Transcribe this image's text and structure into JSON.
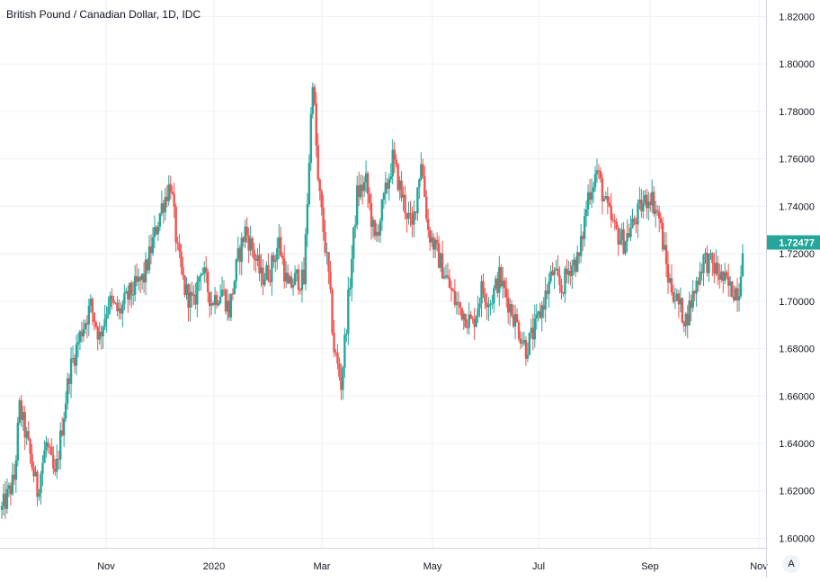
{
  "chart_data": {
    "type": "candlestick",
    "title": "British Pound / Canadian Dollar, 1D, IDC",
    "y_ticks": [
      "1.82000",
      "1.80000",
      "1.78000",
      "1.76000",
      "1.74000",
      "1.72000",
      "1.70000",
      "1.68000",
      "1.66000",
      "1.64000",
      "1.62000",
      "1.60000"
    ],
    "ylim": [
      1.596,
      1.827
    ],
    "x_ticks": [
      "Nov",
      "2020",
      "Mar",
      "May",
      "Jul",
      "Sep",
      "Nov"
    ],
    "last_price": "1.72477",
    "grid": true,
    "colors": {
      "up": "#26a69a",
      "down": "#ef5350",
      "last_price_bg": "#26a69a"
    },
    "waypoints": [
      [
        0,
        1.612
      ],
      [
        7,
        1.625
      ],
      [
        10,
        1.655
      ],
      [
        14,
        1.642
      ],
      [
        20,
        1.62
      ],
      [
        25,
        1.64
      ],
      [
        30,
        1.625
      ],
      [
        38,
        1.67
      ],
      [
        45,
        1.688
      ],
      [
        50,
        1.698
      ],
      [
        55,
        1.685
      ],
      [
        60,
        1.7
      ],
      [
        66,
        1.695
      ],
      [
        72,
        1.703
      ],
      [
        80,
        1.71
      ],
      [
        85,
        1.725
      ],
      [
        90,
        1.74
      ],
      [
        95,
        1.75
      ],
      [
        99,
        1.72
      ],
      [
        103,
        1.705
      ],
      [
        108,
        1.698
      ],
      [
        112,
        1.715
      ],
      [
        118,
        1.7
      ],
      [
        124,
        1.705
      ],
      [
        128,
        1.696
      ],
      [
        133,
        1.718
      ],
      [
        137,
        1.73
      ],
      [
        141,
        1.722
      ],
      [
        146,
        1.71
      ],
      [
        151,
        1.713
      ],
      [
        156,
        1.725
      ],
      [
        161,
        1.705
      ],
      [
        166,
        1.71
      ],
      [
        170,
        1.708
      ],
      [
        175,
        1.795
      ],
      [
        178,
        1.75
      ],
      [
        184,
        1.71
      ],
      [
        187,
        1.68
      ],
      [
        191,
        1.665
      ],
      [
        195,
        1.7
      ],
      [
        200,
        1.745
      ],
      [
        205,
        1.75
      ],
      [
        210,
        1.725
      ],
      [
        215,
        1.742
      ],
      [
        220,
        1.76
      ],
      [
        225,
        1.745
      ],
      [
        231,
        1.73
      ],
      [
        236,
        1.76
      ],
      [
        240,
        1.73
      ],
      [
        245,
        1.72
      ],
      [
        250,
        1.71
      ],
      [
        255,
        1.7
      ],
      [
        260,
        1.695
      ],
      [
        265,
        1.69
      ],
      [
        270,
        1.705
      ],
      [
        275,
        1.7
      ],
      [
        280,
        1.71
      ],
      [
        285,
        1.7
      ],
      [
        290,
        1.69
      ],
      [
        295,
        1.68
      ],
      [
        300,
        1.688
      ],
      [
        305,
        1.7
      ],
      [
        310,
        1.712
      ],
      [
        315,
        1.705
      ],
      [
        320,
        1.715
      ],
      [
        325,
        1.718
      ],
      [
        330,
        1.745
      ],
      [
        335,
        1.755
      ],
      [
        340,
        1.74
      ],
      [
        345,
        1.73
      ],
      [
        350,
        1.725
      ],
      [
        355,
        1.732
      ],
      [
        360,
        1.74
      ],
      [
        365,
        1.745
      ],
      [
        370,
        1.735
      ],
      [
        375,
        1.71
      ],
      [
        380,
        1.7
      ],
      [
        385,
        1.692
      ],
      [
        390,
        1.705
      ],
      [
        395,
        1.718
      ],
      [
        400,
        1.715
      ],
      [
        405,
        1.71
      ],
      [
        410,
        1.705
      ],
      [
        415,
        1.705
      ],
      [
        417,
        1.725
      ]
    ]
  },
  "ui": {
    "auto_scale_label": "A"
  }
}
